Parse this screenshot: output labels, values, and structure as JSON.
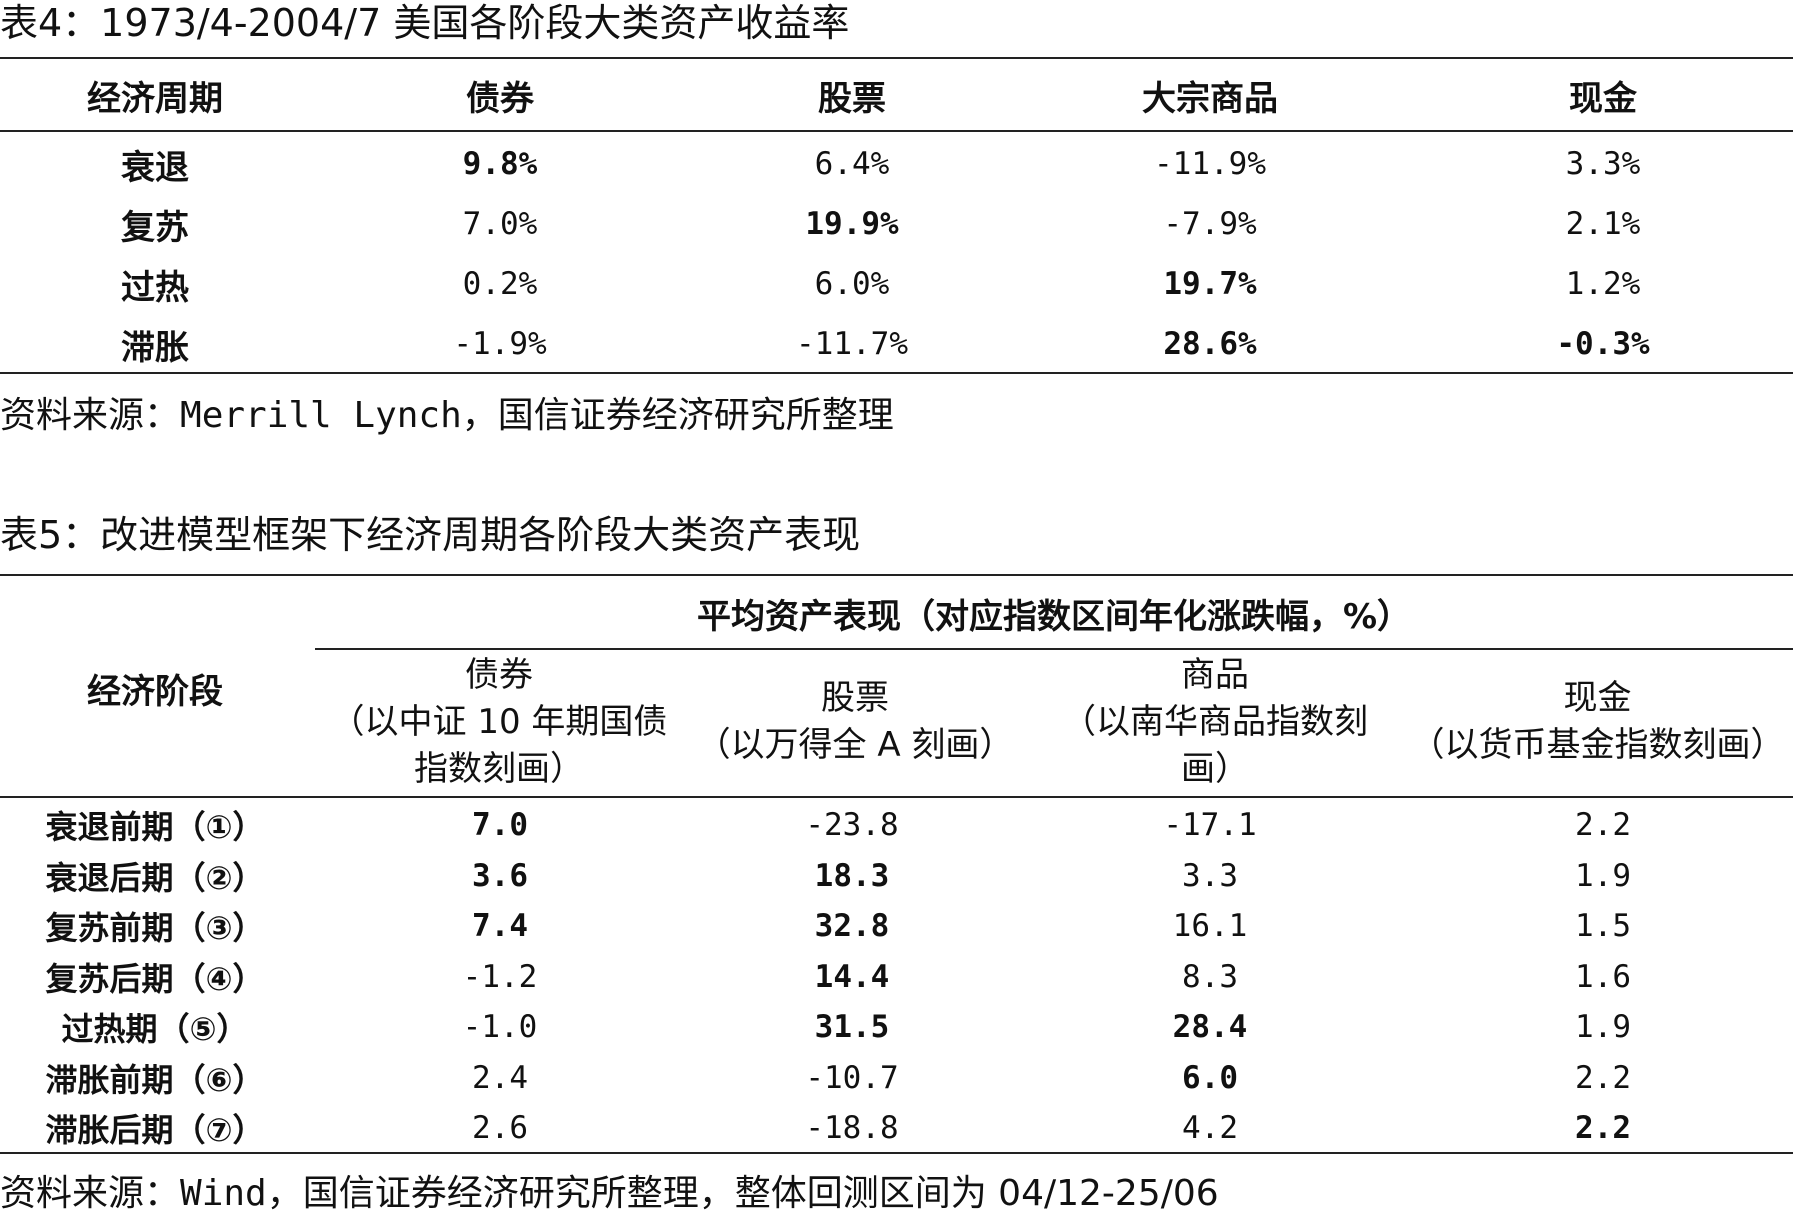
{
  "table4": {
    "title": "表4：1973/4-2004/7 美国各阶段大类资产收益率",
    "headers": [
      "经济周期",
      "债券",
      "股票",
      "大宗商品",
      "现金"
    ],
    "rows": [
      {
        "phase": "衰退",
        "values": [
          "9.8%",
          "6.4%",
          "-11.9%",
          "3.3%"
        ],
        "bold": [
          true,
          false,
          false,
          false
        ]
      },
      {
        "phase": "复苏",
        "values": [
          "7.0%",
          "19.9%",
          "-7.9%",
          "2.1%"
        ],
        "bold": [
          false,
          true,
          false,
          false
        ]
      },
      {
        "phase": "过热",
        "values": [
          "0.2%",
          "6.0%",
          "19.7%",
          "1.2%"
        ],
        "bold": [
          false,
          false,
          true,
          false
        ]
      },
      {
        "phase": "滞胀",
        "values": [
          "-1.9%",
          "-11.7%",
          "28.6%",
          "-0.3%"
        ],
        "bold": [
          false,
          false,
          true,
          true
        ]
      }
    ],
    "source_prefix": "资料来源：",
    "source_brand": "Merrill Lynch",
    "source_suffix": "，国信证券经济研究所整理"
  },
  "table5": {
    "title": "表5：改进模型框架下经济周期各阶段大类资产表现",
    "group_header": "平均资产表现（对应指数区间年化涨跌幅，%）",
    "row_header": "经济阶段",
    "columns": [
      {
        "name": "债券",
        "desc": "（以中证 10 年期国债指数刻画）"
      },
      {
        "name": "股票",
        "desc": "（以万得全 A 刻画）"
      },
      {
        "name": "商品",
        "desc": "（以南华商品指数刻画）"
      },
      {
        "name": "现金",
        "desc": "（以货币基金指数刻画）"
      }
    ],
    "rows": [
      {
        "phase": "衰退前期（①）",
        "values": [
          "7.0",
          "-23.8",
          "-17.1",
          "2.2"
        ],
        "bold": [
          true,
          false,
          false,
          false
        ]
      },
      {
        "phase": "衰退后期（②）",
        "values": [
          "3.6",
          "18.3",
          "3.3",
          "1.9"
        ],
        "bold": [
          true,
          true,
          false,
          false
        ]
      },
      {
        "phase": "复苏前期（③）",
        "values": [
          "7.4",
          "32.8",
          "16.1",
          "1.5"
        ],
        "bold": [
          true,
          true,
          false,
          false
        ]
      },
      {
        "phase": "复苏后期（④）",
        "values": [
          "-1.2",
          "14.4",
          "8.3",
          "1.6"
        ],
        "bold": [
          false,
          true,
          false,
          false
        ]
      },
      {
        "phase": "过热期（⑤）",
        "values": [
          "-1.0",
          "31.5",
          "28.4",
          "1.9"
        ],
        "bold": [
          false,
          true,
          true,
          false
        ]
      },
      {
        "phase": "滞胀前期（⑥）",
        "values": [
          "2.4",
          "-10.7",
          "6.0",
          "2.2"
        ],
        "bold": [
          false,
          false,
          true,
          false
        ]
      },
      {
        "phase": "滞胀后期（⑦）",
        "values": [
          "2.6",
          "-18.8",
          "4.2",
          "2.2"
        ],
        "bold": [
          false,
          false,
          false,
          true
        ]
      }
    ],
    "source_prefix": "资料来源：",
    "source_brand": "Wind",
    "source_suffix": "，国信证券经济研究所整理，整体回测区间为 04/12-25/06"
  }
}
